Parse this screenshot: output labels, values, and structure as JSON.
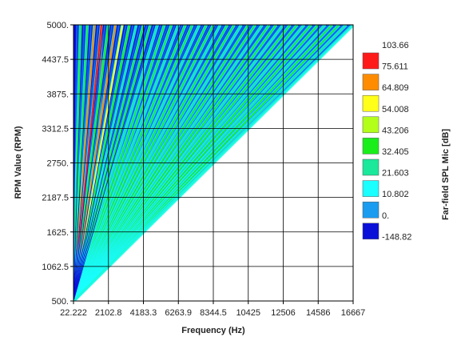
{
  "chart_data": {
    "type": "heatmap",
    "subtype": "order-analysis waterfall (RPM vs frequency)",
    "xlabel": "Frequency (Hz)",
    "ylabel": "RPM Value (RPM)",
    "colorbar_label": "Far-field SPL Mic [dB]",
    "x_ticks": [
      "22.222",
      "2102.8",
      "4183.3",
      "6263.9",
      "8344.5",
      "10425",
      "12506",
      "14586",
      "16667"
    ],
    "y_ticks": [
      "500.",
      "1062.5",
      "1625.",
      "2187.5",
      "2750.",
      "3312.5",
      "3875.",
      "4437.5",
      "5000."
    ],
    "xlim": [
      22.222,
      16667
    ],
    "ylim": [
      500,
      5000
    ],
    "grid": true,
    "legend_position": "right",
    "colorbar": {
      "labels": [
        "103.66",
        "75.611",
        "64.809",
        "54.008",
        "43.206",
        "32.405",
        "21.603",
        "10.802",
        "0.",
        "-148.82"
      ],
      "colors": [
        "#ff1a1a",
        "#ff8c00",
        "#ffff1a",
        "#b3ff1a",
        "#1aee1a",
        "#1ae89a",
        "#1affff",
        "#1a9cf0",
        "#0a10d8"
      ]
    },
    "orders": {
      "count": 40,
      "max_frequency_at_max_rpm": 16667,
      "highlighted": [
        {
          "index": 4,
          "level": "red"
        },
        {
          "index": 3,
          "level": "orange"
        },
        {
          "index": 5,
          "level": "green"
        },
        {
          "index": 6,
          "level": "orange"
        },
        {
          "index": 7,
          "level": "yellow"
        },
        {
          "index": 8,
          "level": "green"
        }
      ]
    }
  }
}
